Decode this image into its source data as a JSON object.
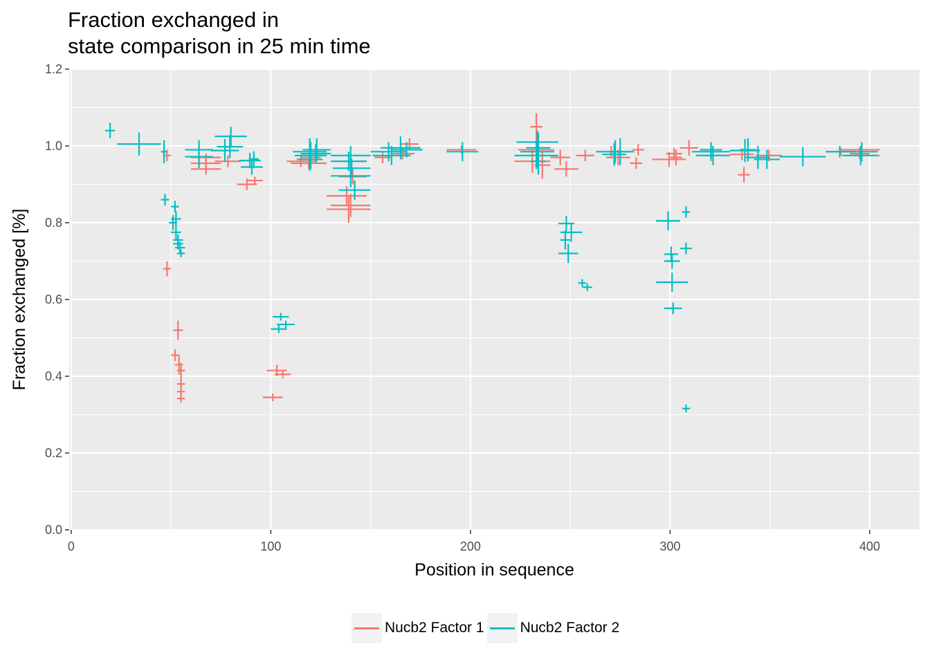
{
  "chart_data": {
    "type": "scatter",
    "title": "Fraction exchanged in\nstate comparison in 25 min time",
    "xlabel": "Position in sequence",
    "ylabel": "Fraction exchanged [%]",
    "xlim": [
      -1,
      425
    ],
    "ylim": [
      0,
      1.2
    ],
    "x_ticks": [
      0,
      100,
      200,
      300,
      400
    ],
    "y_ticks": [
      0.0,
      0.2,
      0.4,
      0.6,
      0.8,
      1.0,
      1.2
    ],
    "y_tick_labels": [
      "0.0",
      "0.2",
      "0.4",
      "0.6",
      "0.8",
      "1.0",
      "1.2"
    ],
    "grid": true,
    "background": "#ebebeb",
    "legend_position": "bottom",
    "note_marks": "each point is a cross: horizontal segment spans the peptide start-end, vertical segment is the error bar",
    "series": [
      {
        "name": "Nucb2 Factor 1",
        "color": "#f8766d",
        "points": [
          [
            46,
            50,
            0.975,
            0.03
          ],
          [
            46,
            50,
            0.68,
            0.04
          ],
          [
            50,
            54,
            0.455,
            0.03
          ],
          [
            51,
            56,
            0.52,
            0.05
          ],
          [
            52,
            56,
            0.43,
            0.05
          ],
          [
            53,
            57,
            0.415,
            0.04
          ],
          [
            53,
            57,
            0.38,
            0.03
          ],
          [
            53,
            57,
            0.36,
            0.03
          ],
          [
            53,
            57,
            0.342,
            0.02
          ],
          [
            60,
            75,
            0.955,
            0.04
          ],
          [
            60,
            75,
            0.94,
            0.03
          ],
          [
            60,
            75,
            0.97,
            0.02
          ],
          [
            72,
            85,
            0.96,
            0.03
          ],
          [
            83,
            93,
            0.9,
            0.03
          ],
          [
            88,
            96,
            0.91,
            0.02
          ],
          [
            96,
            106,
            0.345,
            0.02
          ],
          [
            98,
            108,
            0.415,
            0.03
          ],
          [
            102,
            110,
            0.405,
            0.02
          ],
          [
            108,
            122,
            0.96,
            0.03
          ],
          [
            110,
            128,
            0.955,
            0.03
          ],
          [
            115,
            125,
            0.97,
            0.03
          ],
          [
            128,
            148,
            0.87,
            0.05
          ],
          [
            128,
            150,
            0.835,
            0.07
          ],
          [
            130,
            150,
            0.845,
            0.06
          ],
          [
            132,
            148,
            0.96,
            0.03
          ],
          [
            134,
            148,
            0.92,
            0.04
          ],
          [
            152,
            160,
            0.97,
            0.03
          ],
          [
            160,
            172,
            0.98,
            0.03
          ],
          [
            165,
            174,
            1.005,
            0.03
          ],
          [
            188,
            203,
            0.99,
            0.02
          ],
          [
            222,
            240,
            0.96,
            0.06
          ],
          [
            224,
            242,
            0.99,
            0.05
          ],
          [
            226,
            240,
            1.01,
            0.06
          ],
          [
            230,
            236,
            1.05,
            0.07
          ],
          [
            232,
            240,
            0.95,
            0.07
          ],
          [
            240,
            250,
            0.97,
            0.04
          ],
          [
            242,
            254,
            0.94,
            0.04
          ],
          [
            253,
            262,
            0.975,
            0.03
          ],
          [
            263,
            278,
            0.985,
            0.03
          ],
          [
            268,
            280,
            0.97,
            0.04
          ],
          [
            280,
            286,
            0.955,
            0.03
          ],
          [
            281,
            287,
            0.99,
            0.03
          ],
          [
            291,
            308,
            0.965,
            0.04
          ],
          [
            298,
            306,
            0.98,
            0.03
          ],
          [
            300,
            306,
            0.97,
            0.04
          ],
          [
            305,
            314,
            0.995,
            0.04
          ],
          [
            313,
            328,
            0.975,
            0.03
          ],
          [
            330,
            342,
            0.978,
            0.03
          ],
          [
            334,
            340,
            0.925,
            0.04
          ],
          [
            343,
            356,
            0.975,
            0.03
          ],
          [
            378,
            393,
            0.985,
            0.02
          ],
          [
            386,
            405,
            0.99,
            0.02
          ],
          [
            386,
            405,
            0.975,
            0.03
          ],
          [
            390,
            400,
            0.98,
            0.03
          ]
        ]
      },
      {
        "name": "Nucb2 Factor 2",
        "color": "#00bfc4",
        "points": [
          [
            17,
            22,
            1.04,
            0.04
          ],
          [
            23,
            45,
            1.005,
            0.06
          ],
          [
            45,
            48,
            0.985,
            0.06
          ],
          [
            45,
            49,
            0.86,
            0.03
          ],
          [
            49,
            53,
            0.8,
            0.04
          ],
          [
            50,
            54,
            0.842,
            0.03
          ],
          [
            50,
            55,
            0.81,
            0.04
          ],
          [
            50,
            55,
            0.775,
            0.04
          ],
          [
            51,
            56,
            0.755,
            0.03
          ],
          [
            51,
            56,
            0.745,
            0.03
          ],
          [
            52,
            57,
            0.735,
            0.03
          ],
          [
            53,
            57,
            0.72,
            0.02
          ],
          [
            57,
            71,
            0.99,
            0.05
          ],
          [
            57,
            71,
            0.972,
            0.06
          ],
          [
            70,
            84,
            0.988,
            0.06
          ],
          [
            72,
            88,
            1.025,
            0.05
          ],
          [
            73,
            86,
            0.998,
            0.06
          ],
          [
            84,
            95,
            0.962,
            0.04
          ],
          [
            85,
            96,
            0.945,
            0.04
          ],
          [
            89,
            94,
            0.966,
            0.04
          ],
          [
            101,
            109,
            0.555,
            0.02
          ],
          [
            100,
            108,
            0.523,
            0.02
          ],
          [
            103,
            112,
            0.535,
            0.02
          ],
          [
            111,
            128,
            0.985,
            0.07
          ],
          [
            112,
            128,
            0.975,
            0.07
          ],
          [
            113,
            126,
            0.965,
            0.06
          ],
          [
            115,
            130,
            0.98,
            0.05
          ],
          [
            116,
            130,
            0.99,
            0.06
          ],
          [
            130,
            150,
            0.975,
            0.05
          ],
          [
            130,
            148,
            0.96,
            0.05
          ],
          [
            131,
            150,
            0.942,
            0.05
          ],
          [
            130,
            150,
            0.922,
            0.06
          ],
          [
            134,
            150,
            0.885,
            0.05
          ],
          [
            150,
            168,
            0.985,
            0.05
          ],
          [
            151,
            170,
            0.975,
            0.05
          ],
          [
            155,
            175,
            0.995,
            0.06
          ],
          [
            160,
            176,
            0.99,
            0.04
          ],
          [
            188,
            204,
            0.985,
            0.05
          ],
          [
            222,
            244,
            0.975,
            0.07
          ],
          [
            223,
            244,
            1.01,
            0.06
          ],
          [
            225,
            242,
            0.985,
            0.08
          ],
          [
            228,
            240,
            0.995,
            0.08
          ],
          [
            230,
            238,
            0.96,
            0.07
          ],
          [
            244,
            252,
            0.798,
            0.04
          ],
          [
            245,
            256,
            0.775,
            0.05
          ],
          [
            245,
            250,
            0.755,
            0.05
          ],
          [
            244,
            254,
            0.72,
            0.05
          ],
          [
            254,
            258,
            0.643,
            0.02
          ],
          [
            256,
            261,
            0.632,
            0.02
          ],
          [
            263,
            282,
            0.985,
            0.06
          ],
          [
            266,
            278,
            0.978,
            0.06
          ],
          [
            270,
            280,
            0.985,
            0.07
          ],
          [
            293,
            305,
            0.805,
            0.05
          ],
          [
            293,
            309,
            0.645,
            0.05
          ],
          [
            297,
            304,
            0.718,
            0.04
          ],
          [
            297,
            305,
            0.7,
            0.04
          ],
          [
            297,
            306,
            0.577,
            0.03
          ],
          [
            306,
            310,
            0.828,
            0.03
          ],
          [
            305,
            311,
            0.733,
            0.03
          ],
          [
            306,
            310,
            0.316,
            0.02
          ],
          [
            311,
            330,
            0.985,
            0.04
          ],
          [
            313,
            330,
            0.975,
            0.05
          ],
          [
            315,
            326,
            0.99,
            0.04
          ],
          [
            330,
            345,
            0.988,
            0.06
          ],
          [
            335,
            343,
            0.99,
            0.06
          ],
          [
            338,
            350,
            0.97,
            0.06
          ],
          [
            342,
            355,
            0.965,
            0.05
          ],
          [
            355,
            378,
            0.972,
            0.05
          ],
          [
            378,
            392,
            0.985,
            0.03
          ],
          [
            387,
            404,
            0.975,
            0.05
          ],
          [
            388,
            404,
            0.985,
            0.05
          ]
        ]
      }
    ]
  }
}
